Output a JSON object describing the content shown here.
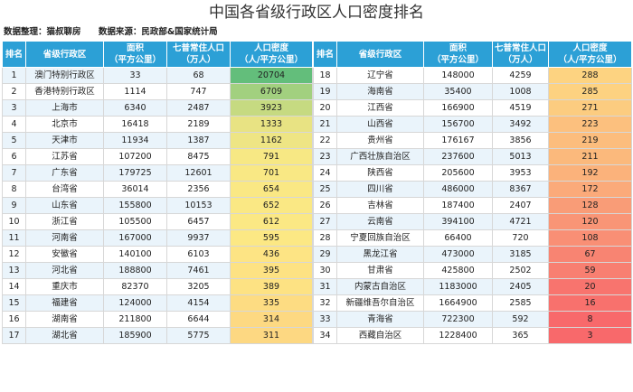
{
  "title": "中国各省级行政区人口密度排名",
  "credits": {
    "compiled": "数据整理：猫叔聊房",
    "source": "数据来源：民政部&国家统计局"
  },
  "headers": {
    "rank": "排名",
    "region": "省级行政区",
    "area_l1": "面积",
    "area_l2": "（平方公里）",
    "pop_l1": "七普常住人口",
    "pop_l2": "（万人）",
    "density_l1": "人口密度",
    "density_l2": "（人/平方公里）"
  },
  "rows": [
    {
      "rank": "1",
      "region": "澳门特别行政区",
      "area": "33",
      "population": "68",
      "density": "20704",
      "color": "#63be7b"
    },
    {
      "rank": "2",
      "region": "香港特别行政区",
      "area": "1114",
      "population": "747",
      "density": "6709",
      "color": "#a2d07f"
    },
    {
      "rank": "3",
      "region": "上海市",
      "area": "6340",
      "population": "2487",
      "density": "3923",
      "color": "#c6da81"
    },
    {
      "rank": "4",
      "region": "北京市",
      "area": "16418",
      "population": "2189",
      "density": "1333",
      "color": "#e8e383"
    },
    {
      "rank": "5",
      "region": "天津市",
      "area": "11934",
      "population": "1387",
      "density": "1162",
      "color": "#eee584"
    },
    {
      "rank": "6",
      "region": "江苏省",
      "area": "107200",
      "population": "8475",
      "density": "791",
      "color": "#f7e884"
    },
    {
      "rank": "7",
      "region": "广东省",
      "area": "179725",
      "population": "12601",
      "density": "701",
      "color": "#f9e884"
    },
    {
      "rank": "8",
      "region": "台湾省",
      "area": "36014",
      "population": "2356",
      "density": "654",
      "color": "#fae884"
    },
    {
      "rank": "9",
      "region": "山东省",
      "area": "155800",
      "population": "10153",
      "density": "652",
      "color": "#fae884"
    },
    {
      "rank": "10",
      "region": "浙江省",
      "area": "105500",
      "population": "6457",
      "density": "612",
      "color": "#fbe884"
    },
    {
      "rank": "11",
      "region": "河南省",
      "area": "167000",
      "population": "9937",
      "density": "595",
      "color": "#fce884"
    },
    {
      "rank": "12",
      "region": "安徽省",
      "area": "140100",
      "population": "6103",
      "density": "436",
      "color": "#fde484"
    },
    {
      "rank": "13",
      "region": "河北省",
      "area": "188800",
      "population": "7461",
      "density": "395",
      "color": "#fde283"
    },
    {
      "rank": "14",
      "region": "重庆市",
      "area": "82370",
      "population": "3205",
      "density": "389",
      "color": "#fde283"
    },
    {
      "rank": "15",
      "region": "福建省",
      "area": "124000",
      "population": "4154",
      "density": "335",
      "color": "#fddc82"
    },
    {
      "rank": "16",
      "region": "湖南省",
      "area": "211800",
      "population": "6644",
      "density": "314",
      "color": "#fdd982"
    },
    {
      "rank": "17",
      "region": "湖北省",
      "area": "185900",
      "population": "5775",
      "density": "311",
      "color": "#fdd882"
    },
    {
      "rank": "18",
      "region": "辽宁省",
      "area": "148000",
      "population": "4259",
      "density": "288",
      "color": "#fdd381"
    },
    {
      "rank": "19",
      "region": "海南省",
      "area": "35400",
      "population": "1008",
      "density": "285",
      "color": "#fdd281"
    },
    {
      "rank": "20",
      "region": "江西省",
      "area": "166900",
      "population": "4519",
      "density": "271",
      "color": "#fccc80"
    },
    {
      "rank": "21",
      "region": "山西省",
      "area": "156700",
      "population": "3492",
      "density": "223",
      "color": "#fcc07e"
    },
    {
      "rank": "22",
      "region": "贵州省",
      "area": "176167",
      "population": "3856",
      "density": "219",
      "color": "#fcbd7d"
    },
    {
      "rank": "23",
      "region": "广西壮族自治区",
      "area": "237600",
      "population": "5013",
      "density": "211",
      "color": "#fbb97c"
    },
    {
      "rank": "24",
      "region": "陕西省",
      "area": "205600",
      "population": "3953",
      "density": "192",
      "color": "#fbb27b"
    },
    {
      "rank": "25",
      "region": "四川省",
      "area": "486000",
      "population": "8367",
      "density": "172",
      "color": "#fbaa7a"
    },
    {
      "rank": "26",
      "region": "吉林省",
      "area": "187400",
      "population": "2407",
      "density": "128",
      "color": "#f99c77"
    },
    {
      "rank": "27",
      "region": "云南省",
      "area": "394100",
      "population": "4721",
      "density": "120",
      "color": "#f99576"
    },
    {
      "rank": "28",
      "region": "宁夏回族自治区",
      "area": "66400",
      "population": "720",
      "density": "108",
      "color": "#f98f75"
    },
    {
      "rank": "29",
      "region": "黑龙江省",
      "area": "473000",
      "population": "3185",
      "density": "67",
      "color": "#f88472"
    },
    {
      "rank": "30",
      "region": "甘肃省",
      "area": "425800",
      "population": "2502",
      "density": "59",
      "color": "#f87f71"
    },
    {
      "rank": "31",
      "region": "内蒙古自治区",
      "area": "1183000",
      "population": "2405",
      "density": "20",
      "color": "#f8746e"
    },
    {
      "rank": "32",
      "region": "新疆维吾尔自治区",
      "area": "1664900",
      "population": "2585",
      "density": "16",
      "color": "#f8716d"
    },
    {
      "rank": "33",
      "region": "青海省",
      "area": "722300",
      "population": "592",
      "density": "8",
      "color": "#f8696b"
    },
    {
      "rank": "34",
      "region": "西藏自治区",
      "area": "1228400",
      "population": "365",
      "density": "3",
      "color": "#f8696b"
    }
  ]
}
